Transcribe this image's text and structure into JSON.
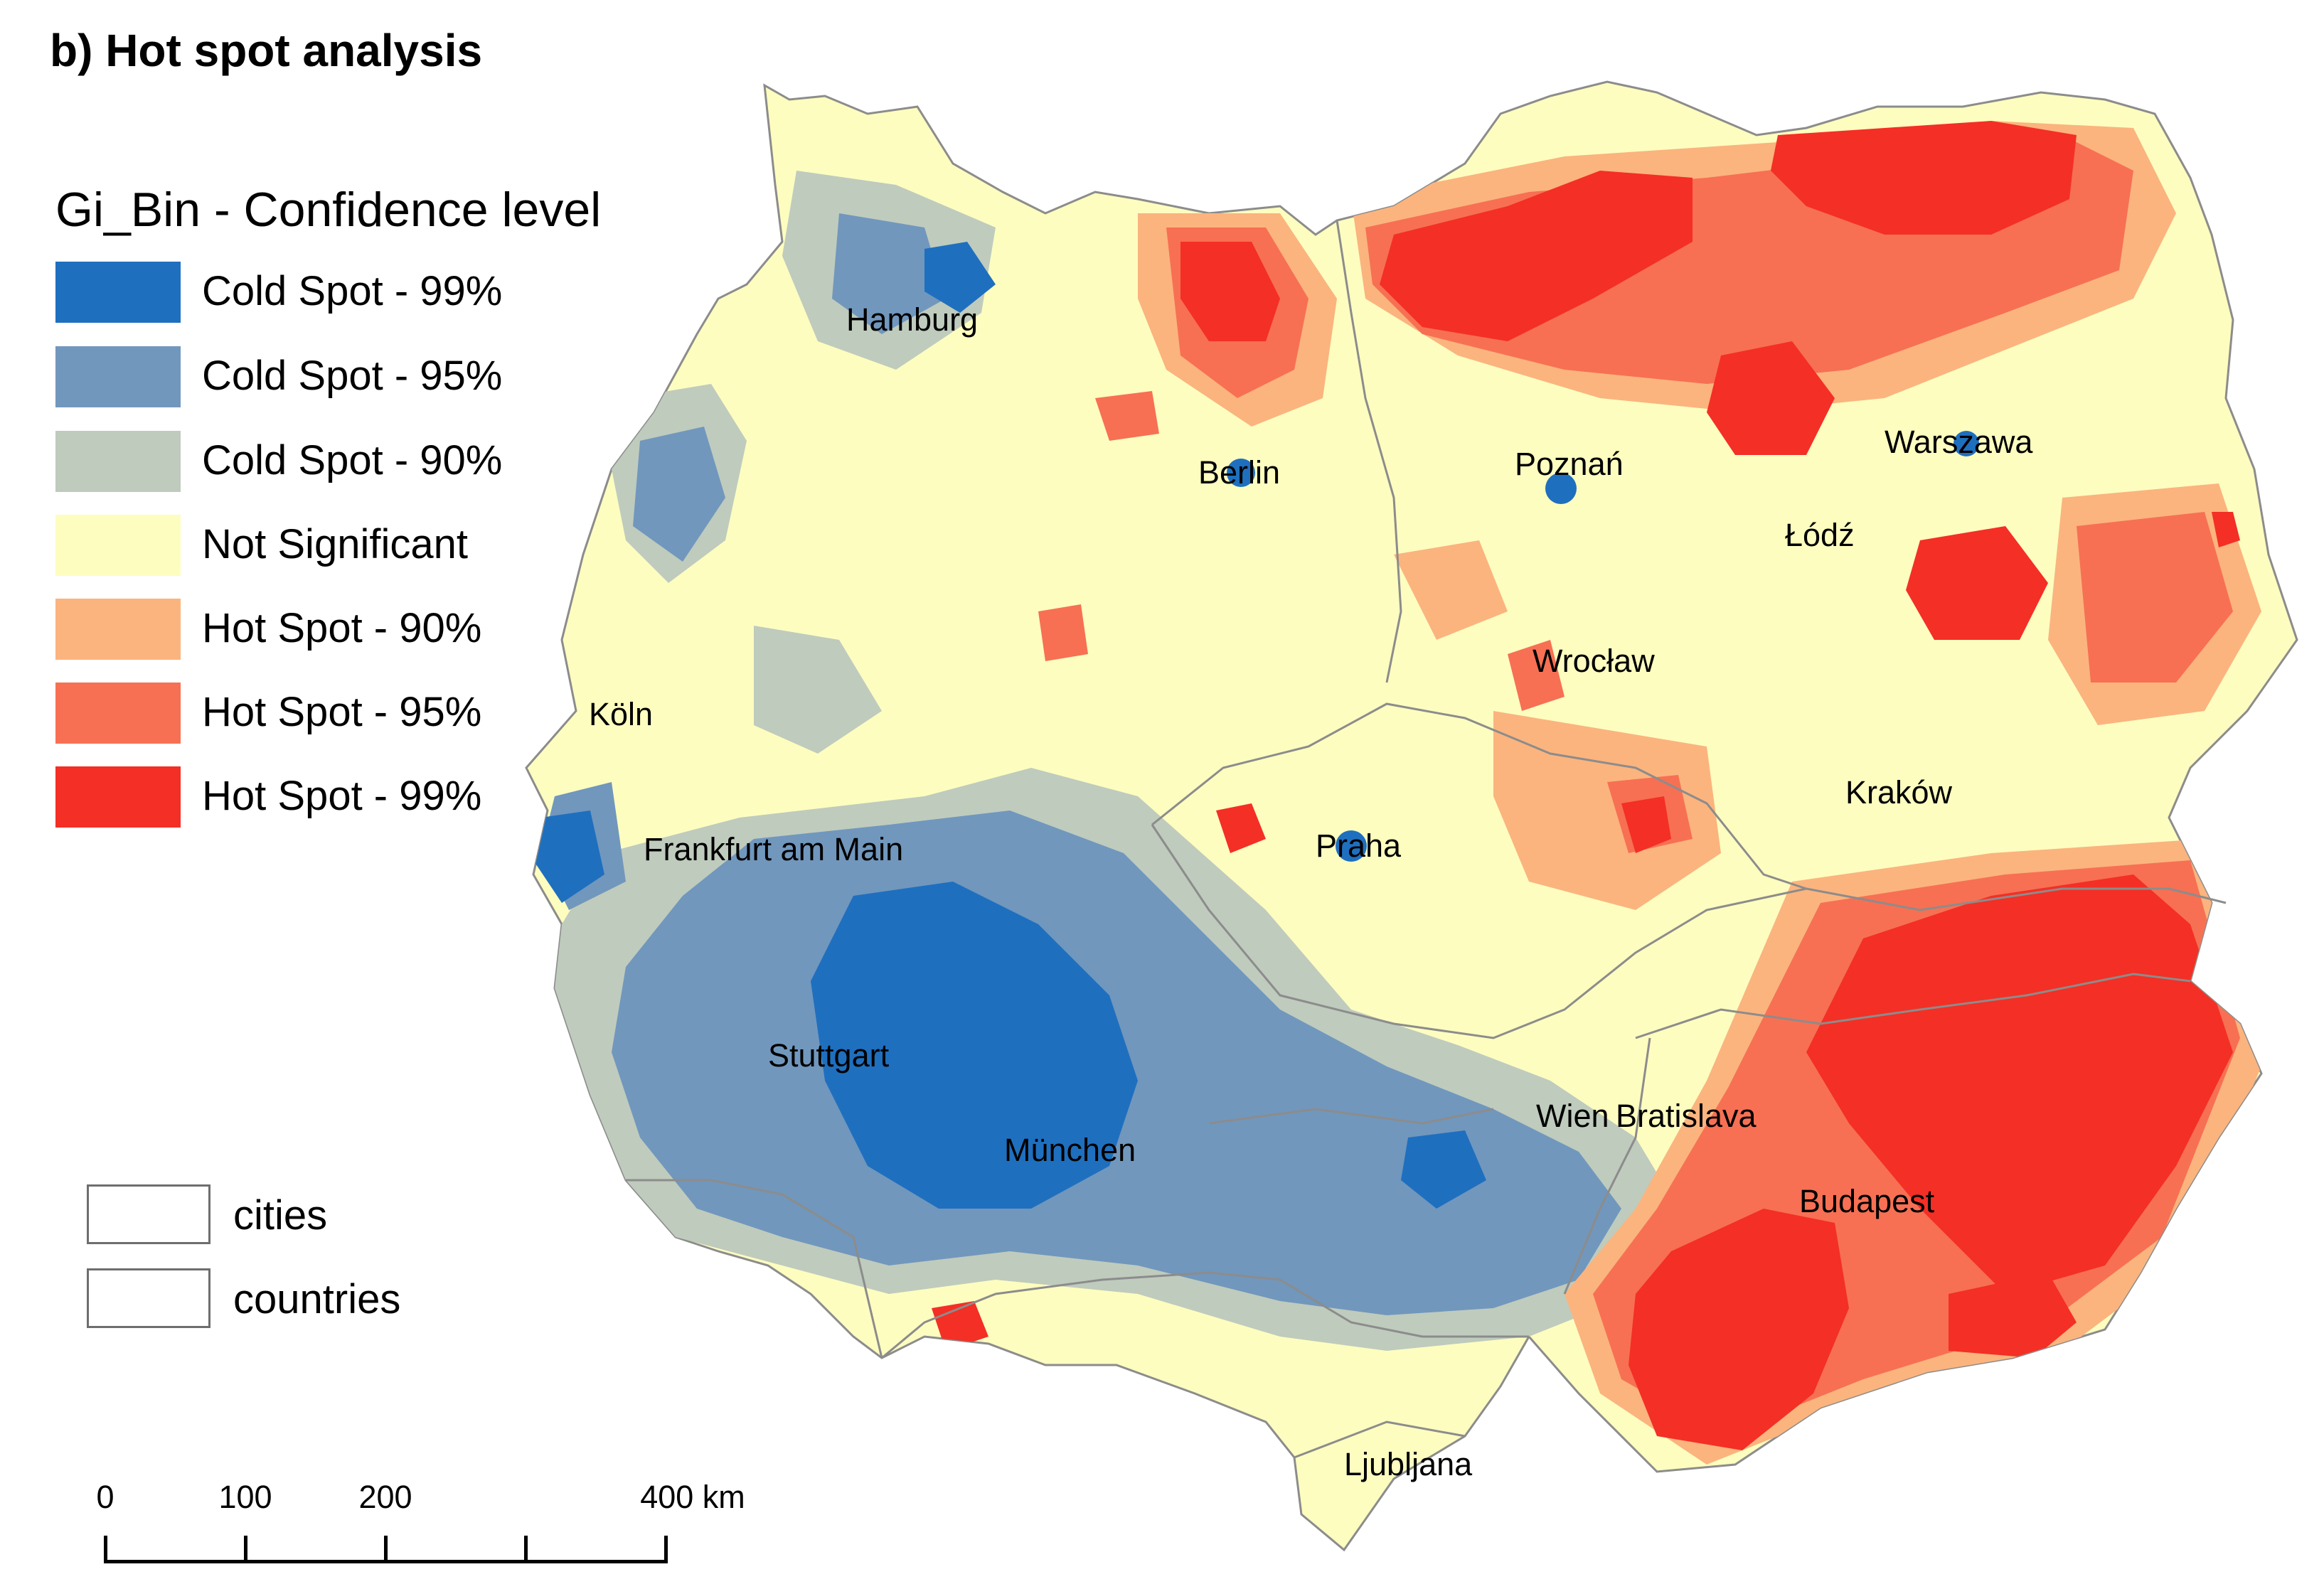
{
  "title": "b) Hot spot analysis",
  "legend": {
    "title": "Gi_Bin - Confidence level",
    "items": [
      {
        "label": "Cold Spot - 99%",
        "color": "#1f6fbf"
      },
      {
        "label": "Cold Spot - 95%",
        "color": "#7197bd"
      },
      {
        "label": "Cold Spot - 90%",
        "color": "#bfcbbd"
      },
      {
        "label": "Not Significant",
        "color": "#fdfdc0"
      },
      {
        "label": "Hot Spot - 90%",
        "color": "#fbb47e"
      },
      {
        "label": "Hot Spot - 95%",
        "color": "#f77053"
      },
      {
        "label": "Hot Spot - 99%",
        "color": "#f42f25"
      }
    ]
  },
  "reference_legend": [
    {
      "label": "cities"
    },
    {
      "label": "countries"
    }
  ],
  "scale_bar": {
    "ticks": [
      "0",
      "100",
      "200",
      "",
      "400 km"
    ],
    "values_km": [
      0,
      100,
      200,
      300,
      400
    ]
  },
  "cities": [
    {
      "name": "Hamburg"
    },
    {
      "name": "Berlin"
    },
    {
      "name": "Poznań"
    },
    {
      "name": "Warszawa"
    },
    {
      "name": "Łódź"
    },
    {
      "name": "Wrocław"
    },
    {
      "name": "Köln"
    },
    {
      "name": "Frankfurt am Main"
    },
    {
      "name": "Praha"
    },
    {
      "name": "Kraków"
    },
    {
      "name": "Stuttgart"
    },
    {
      "name": "München"
    },
    {
      "name": "Wien"
    },
    {
      "name": "Bratislava"
    },
    {
      "name": "Budapest"
    },
    {
      "name": "Ljubljana"
    }
  ]
}
